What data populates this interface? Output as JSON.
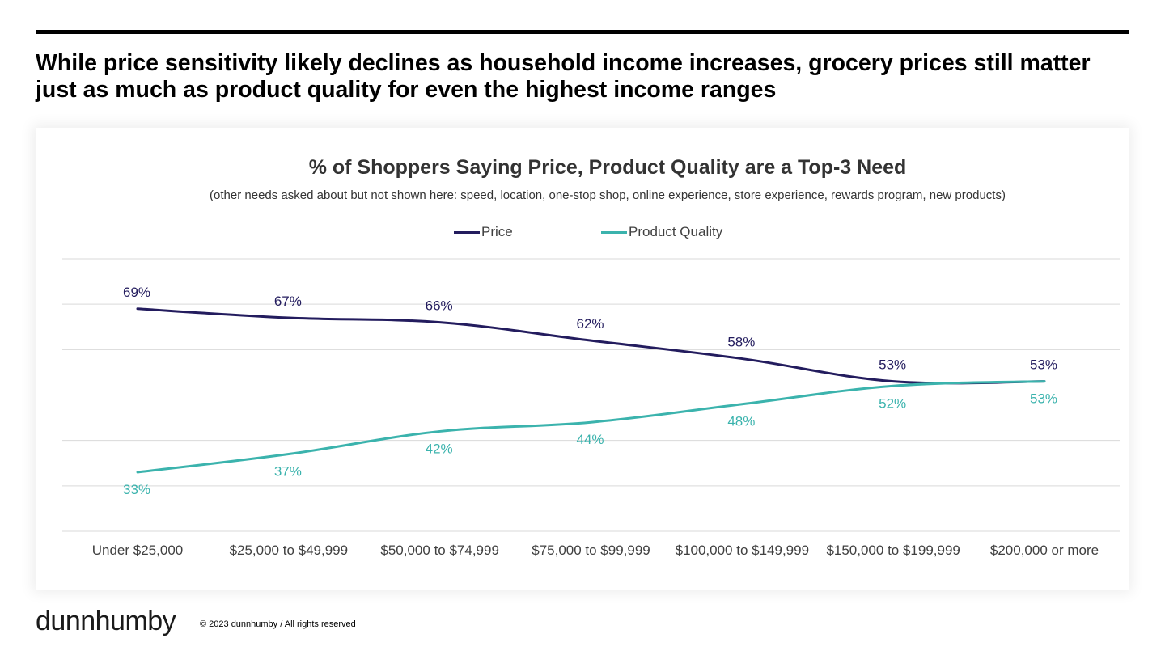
{
  "slide": {
    "headline": "While price sensitivity likely declines as household income increases, grocery prices still matter just as much as product quality for even the highest income ranges"
  },
  "footer": {
    "logo": "dunnhumby",
    "copyright": "© 2023 dunnhumby / All rights reserved"
  },
  "colors": {
    "price": "#231c5e",
    "quality": "#3bb3ad",
    "grid": "#d9d9d9"
  },
  "chart_data": {
    "type": "line",
    "title": "% of Shoppers Saying Price, Product Quality are a Top-3 Need",
    "subtitle": "(other needs asked about but not shown here:  speed, location, one-stop shop, online experience, store experience, rewards program, new products)",
    "xlabel": "",
    "ylabel": "",
    "legend_position": "top-center",
    "grid": true,
    "smooth": true,
    "ylim": [
      20,
      80
    ],
    "categories": [
      "Under $25,000",
      "$25,000 to $49,999",
      "$50,000 to $74,999",
      "$75,000 to $99,999",
      "$100,000 to $149,999",
      "$150,000 to $199,999",
      "$200,000 or more"
    ],
    "series": [
      {
        "name": "Price",
        "values": [
          69,
          67,
          66,
          62,
          58,
          53,
          53
        ],
        "labels": [
          "69%",
          "67%",
          "66%",
          "62%",
          "58%",
          "53%",
          "53%"
        ]
      },
      {
        "name": "Product Quality",
        "values": [
          33,
          37,
          42,
          44,
          48,
          52,
          53
        ],
        "labels": [
          "33%",
          "37%",
          "42%",
          "44%",
          "48%",
          "52%",
          "53%"
        ]
      }
    ]
  }
}
